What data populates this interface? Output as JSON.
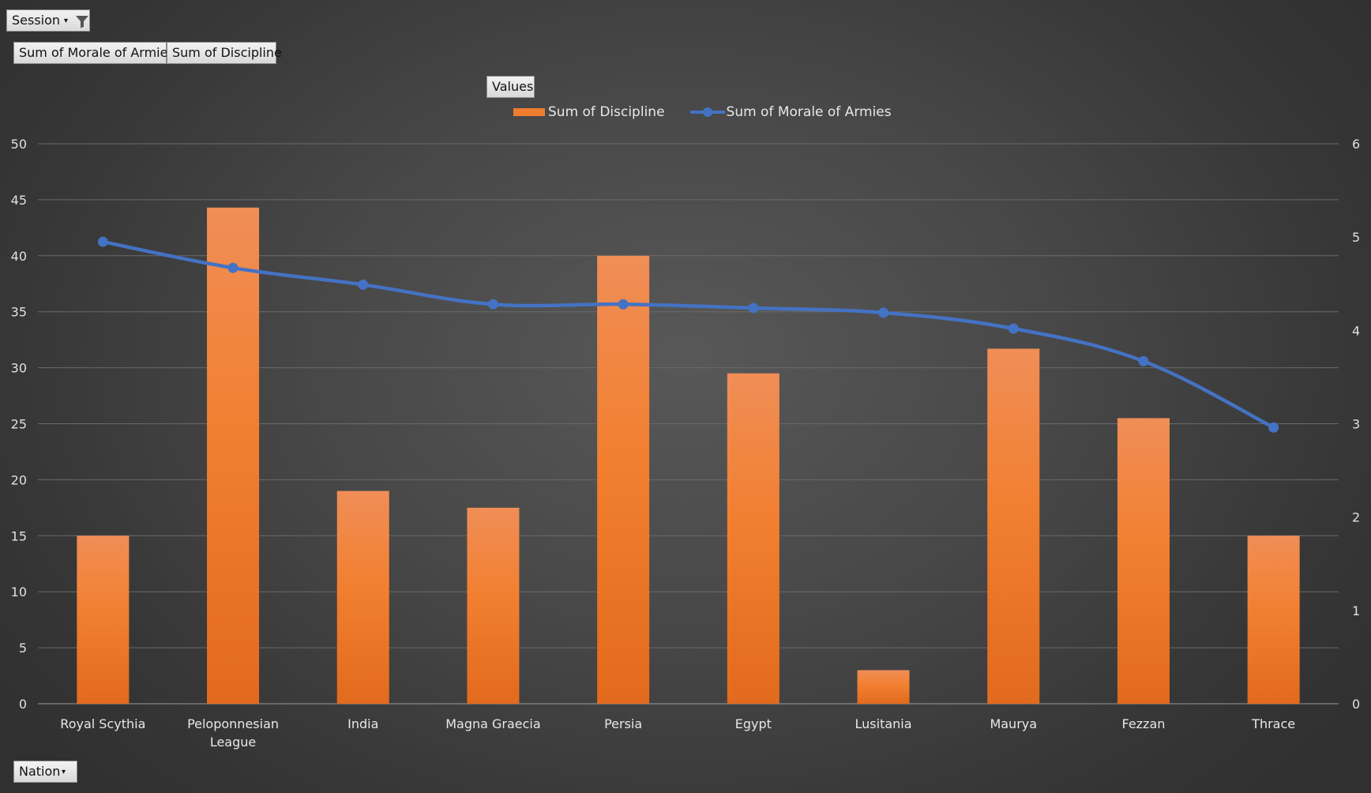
{
  "filters": {
    "session_label": "Session",
    "nation_label": "Nation"
  },
  "value_fields": {
    "morale_label": "Sum of Morale of Armies",
    "discipline_label": "Sum of Discipline"
  },
  "values_button_label": "Values",
  "icons": {
    "filter": "funnel-icon",
    "dropdown": "dropdown-arrow-icon"
  },
  "colors": {
    "bar": "#ef7d31",
    "line": "#4472c4",
    "grid": "#6a6a6a"
  },
  "chart_data": {
    "type": "bar",
    "combo": "bar + line (secondary axis)",
    "categories": [
      "Royal Scythia",
      "Peloponnesian League",
      "India",
      "Magna Graecia",
      "Persia",
      "Egypt",
      "Lusitania",
      "Maurya",
      "Fezzan",
      "Thrace"
    ],
    "category_lines": [
      [
        "Royal Scythia"
      ],
      [
        "Peloponnesian",
        "League"
      ],
      [
        "India"
      ],
      [
        "Magna Graecia"
      ],
      [
        "Persia"
      ],
      [
        "Egypt"
      ],
      [
        "Lusitania"
      ],
      [
        "Maurya"
      ],
      [
        "Fezzan"
      ],
      [
        "Thrace"
      ]
    ],
    "series": [
      {
        "name": "Sum of Discipline",
        "type": "bar",
        "axis": "primary",
        "color": "#ef7d31",
        "values": [
          15,
          44.3,
          19,
          17.5,
          40,
          29.5,
          3,
          31.7,
          25.5,
          15
        ]
      },
      {
        "name": "Sum of Morale of Armies",
        "type": "line",
        "axis": "secondary",
        "color": "#4472c4",
        "values": [
          4.95,
          4.67,
          4.49,
          4.28,
          4.28,
          4.24,
          4.19,
          4.02,
          3.67,
          2.96
        ]
      }
    ],
    "y_primary": {
      "min": 0,
      "max": 50,
      "step": 5,
      "ticks": [
        "0",
        "5",
        "10",
        "15",
        "20",
        "25",
        "30",
        "35",
        "40",
        "45",
        "50"
      ]
    },
    "y_secondary": {
      "min": 0,
      "max": 6,
      "step": 1,
      "ticks": [
        "0",
        "1",
        "2",
        "3",
        "4",
        "5",
        "6"
      ]
    },
    "legend": {
      "position": "top",
      "entries": [
        "Sum of Discipline",
        "Sum of Morale of Armies"
      ]
    },
    "grid": true
  }
}
